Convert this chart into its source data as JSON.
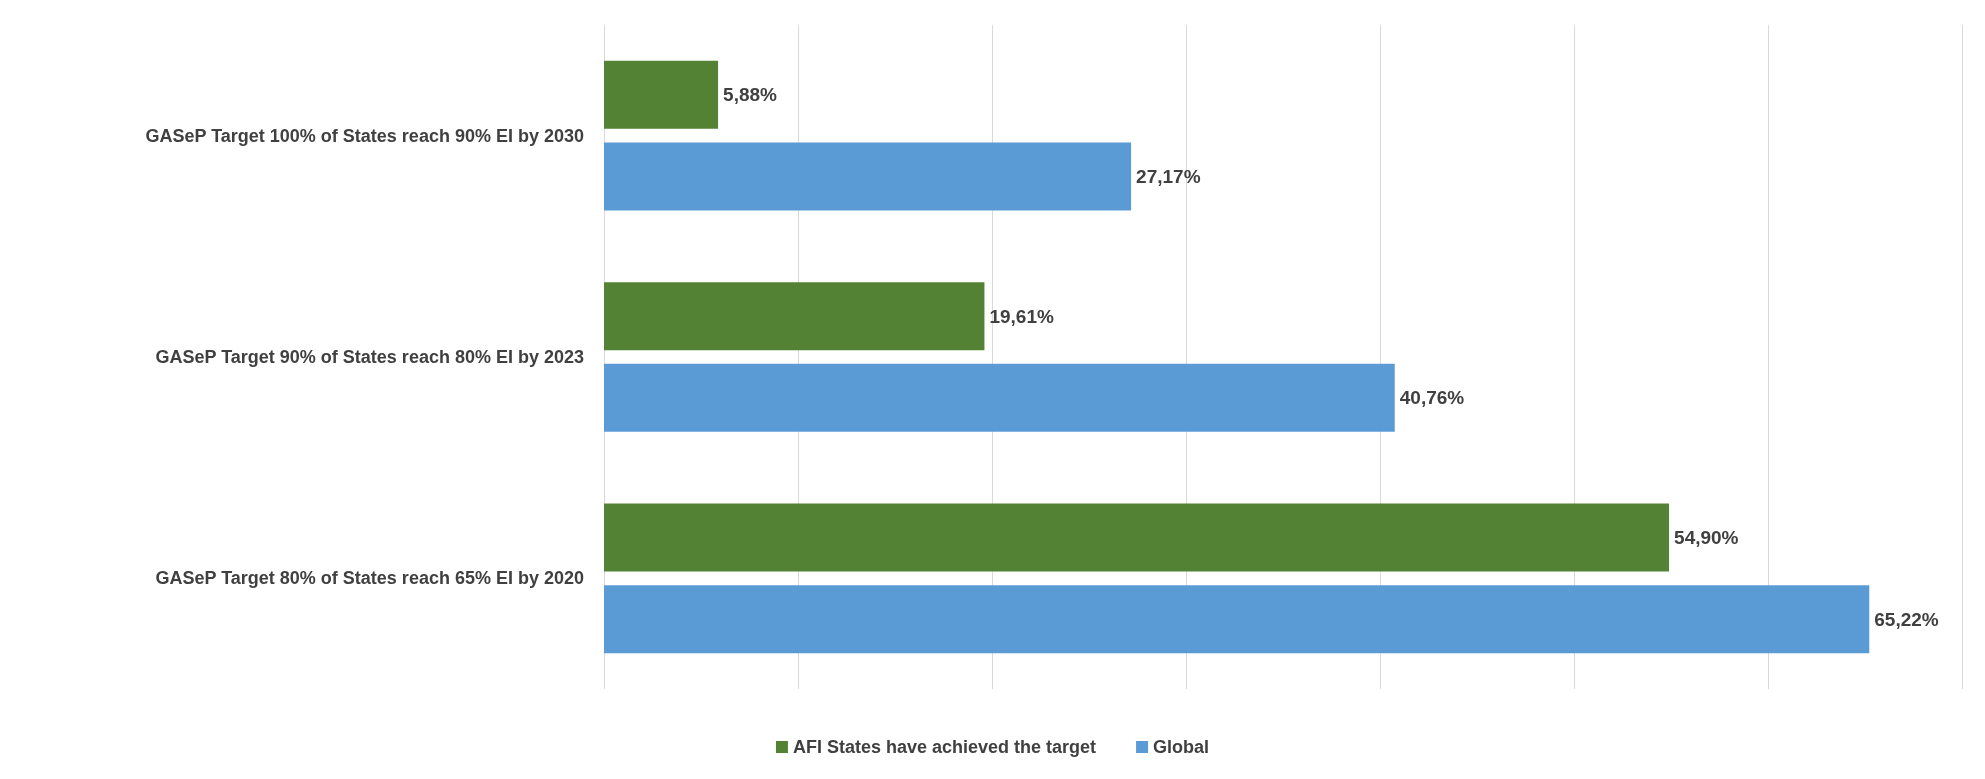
{
  "chart_data": {
    "type": "bar",
    "orientation": "horizontal",
    "categories": [
      "GASeP Target 100% of States reach 90% EI by 2030",
      "GASeP Target 90% of States reach 80% EI by 2023",
      "GASeP Target 80% of States reach 65% EI by 2020"
    ],
    "series": [
      {
        "name": "AFI States have achieved the target",
        "color": "#548235",
        "values": [
          5.88,
          19.61,
          54.9
        ],
        "value_labels": [
          "5,88%",
          "19,61%",
          "54,90%"
        ]
      },
      {
        "name": "Global",
        "color": "#5b9bd5",
        "values": [
          27.17,
          40.76,
          65.22
        ],
        "value_labels": [
          "27,17%",
          "40,76%",
          "65,22%"
        ]
      }
    ],
    "xlim": [
      0,
      70
    ],
    "xticks": [
      {
        "value": 0,
        "label": null
      },
      {
        "value": 10,
        "label": null
      },
      {
        "value": 20,
        "label": null
      },
      {
        "value": 30,
        "label": null
      },
      {
        "value": 40,
        "label": null
      },
      {
        "value": 50,
        "label": null
      },
      {
        "value": 60,
        "label": null
      },
      {
        "value": 70,
        "label": null
      }
    ],
    "grid": "x",
    "legend": "bottom"
  }
}
